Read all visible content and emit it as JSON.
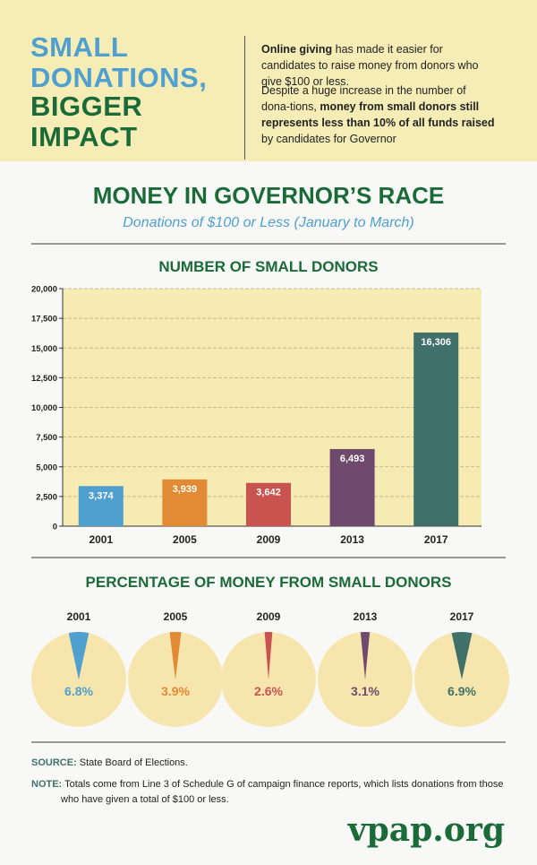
{
  "header": {
    "title_line1": "SMALL",
    "title_line2": "DONATIONS,",
    "title_line3": "BIGGER",
    "title_line4": "IMPACT",
    "p1_bold": "Online giving",
    "p1_rest": " has made it easier for candidates to raise money from donors who give $100 or less.",
    "p2_start": "Despite a huge increase in the number of dona-tions, ",
    "p2_bold": "money from small donors still represents less than 10% of all funds raised",
    "p2_end": " by candidates for Governor"
  },
  "main": {
    "title": "MONEY IN GOVERNOR’S RACE",
    "subtitle": "Donations of $100 or Less (January to March)"
  },
  "colors": {
    "blue": "#4f9fcf",
    "orange": "#e38a34",
    "red": "#c8534f",
    "purple": "#6f4a6e",
    "teal": "#3f716a",
    "green": "#1b6b38",
    "plot_bg": "#f5ebb3",
    "pie_bg": "#f7e5ae"
  },
  "chart_data": [
    {
      "type": "bar",
      "title": "NUMBER OF SMALL DONORS",
      "categories": [
        "2001",
        "2005",
        "2009",
        "2013",
        "2017"
      ],
      "values": [
        3374,
        3939,
        3642,
        6493,
        16306
      ],
      "data_labels": [
        "3,374",
        "3,939",
        "3,642",
        "6,493",
        "16,306"
      ],
      "colors": [
        "#4f9fcf",
        "#e38a34",
        "#c8534f",
        "#6f4a6e",
        "#3f716a"
      ],
      "ylim": [
        0,
        20000
      ],
      "yticks": [
        "0",
        "2,500",
        "5,000",
        "7,500",
        "10,000",
        "12,500",
        "15,000",
        "17,500",
        "20,000"
      ],
      "grid": true
    },
    {
      "type": "pie",
      "title": "PERCENTAGE OF MONEY FROM SMALL DONORS",
      "categories": [
        "2001",
        "2005",
        "2009",
        "2013",
        "2017"
      ],
      "values": [
        6.8,
        3.9,
        2.6,
        3.1,
        6.9
      ],
      "data_labels": [
        "6.8%",
        "3.9%",
        "2.6%",
        "3.1%",
        "6.9%"
      ],
      "colors": [
        "#4f9fcf",
        "#e38a34",
        "#c8534f",
        "#6f4a6e",
        "#3f716a"
      ]
    }
  ],
  "footer": {
    "source_label": "SOURCE:",
    "source_text": " State Board of Elections.",
    "note_label": "NOTE:",
    "note_text": " Totals come from Line 3 of Schedule G of campaign finance reports, which lists donations from those who have given a total of $100 or less.",
    "logo": "vpap.org"
  }
}
